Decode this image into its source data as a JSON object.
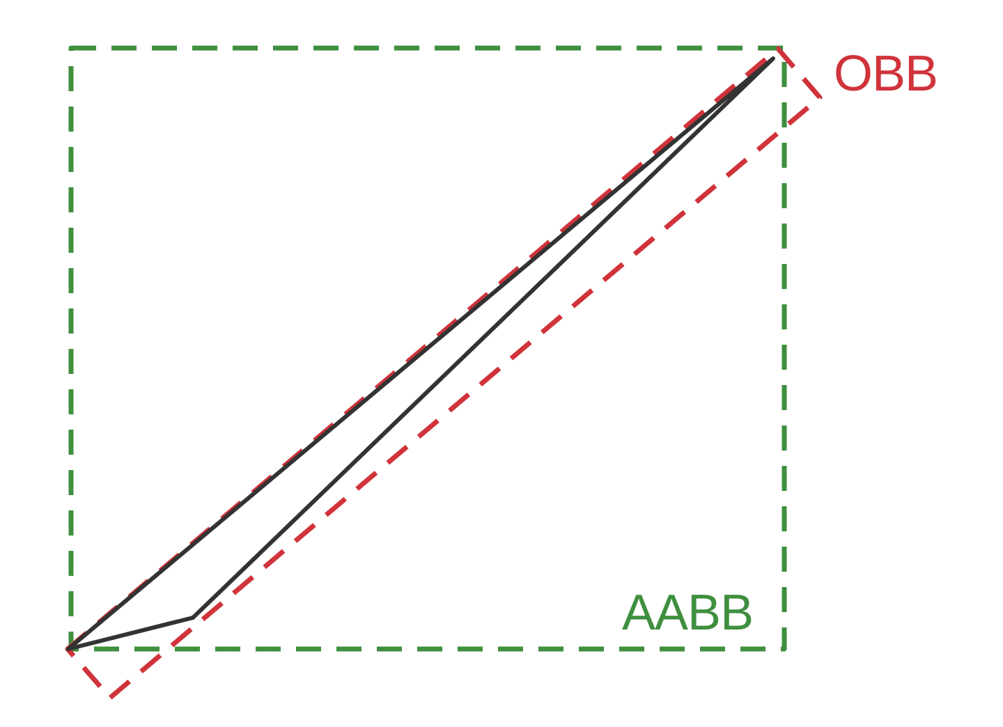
{
  "labels": {
    "obb": "OBB",
    "aabb": "AABB"
  },
  "colors": {
    "obb": "#d0333a",
    "aabb": "#3f8f3f",
    "shape": "#333333",
    "background": "#ffffff"
  }
}
